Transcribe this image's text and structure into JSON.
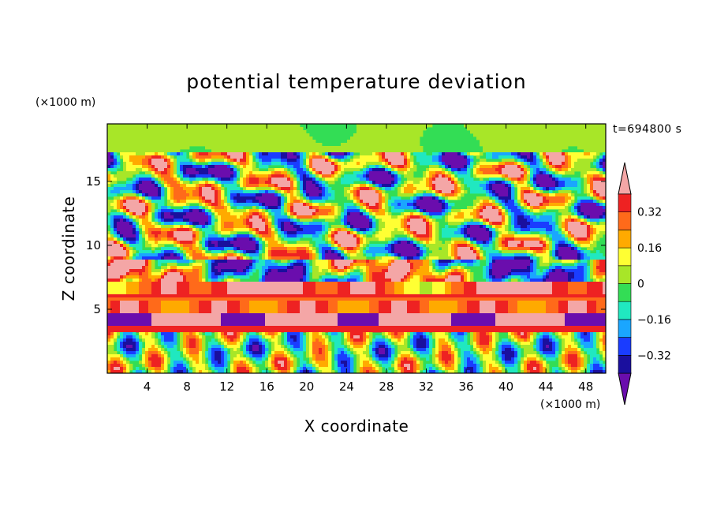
{
  "chart_data": {
    "type": "heatmap",
    "title": "potential temperature deviation",
    "xlabel": "X coordinate",
    "ylabel": "Z coordinate",
    "x_unit": "(×1000 m)",
    "y_unit": "(×1000 m)",
    "time_label": "t=694800 s",
    "xlim": [
      0,
      50
    ],
    "ylim": [
      0,
      19.5
    ],
    "x_ticks": [
      4,
      8,
      12,
      16,
      20,
      24,
      28,
      32,
      36,
      40,
      44,
      48
    ],
    "y_ticks": [
      5,
      10,
      15
    ],
    "colorbar": {
      "levels": [
        -0.4,
        -0.32,
        -0.24,
        -0.16,
        -0.08,
        0,
        0.08,
        0.16,
        0.24,
        0.32,
        0.4
      ],
      "labeled_ticks": [
        0.32,
        0.16,
        0,
        -0.16,
        -0.32
      ],
      "colors": [
        "#6a0dad",
        "#1a0f9e",
        "#1a3cff",
        "#1aa6ff",
        "#20e8c0",
        "#33dd55",
        "#a8e628",
        "#ffff33",
        "#ffaa00",
        "#ff6a1a",
        "#ee2222",
        "#f4a6a6"
      ],
      "extend": "both"
    }
  }
}
